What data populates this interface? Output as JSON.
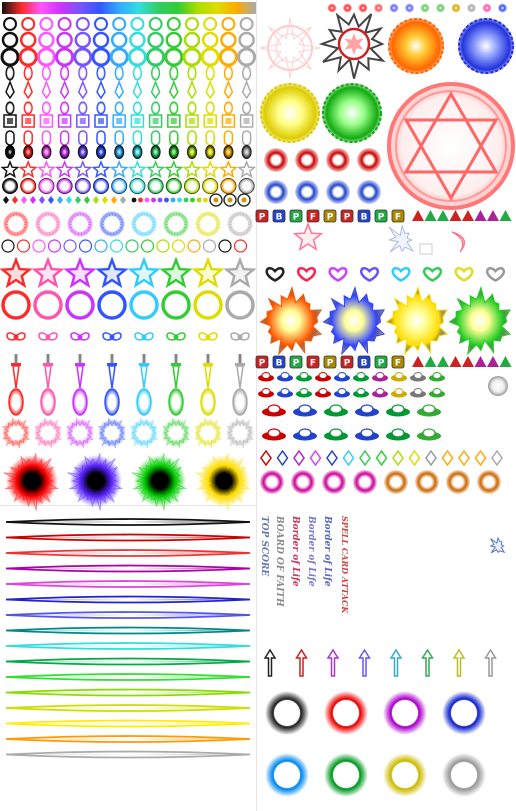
{
  "spritesheet": {
    "palette": [
      "#ff2a2a",
      "#ff55aa",
      "#cc33ff",
      "#3355ff",
      "#33ccff",
      "#33cc33",
      "#dddd00",
      "#aaaaaa"
    ],
    "palette_ext": [
      "#111111",
      "#ff2a2a",
      "#ff55ff",
      "#cc33ff",
      "#7755ff",
      "#3355ff",
      "#33aaff",
      "#33dddd",
      "#33cc66",
      "#33cc33",
      "#aadd00",
      "#dddd00",
      "#ffaa00",
      "#aaaaaa"
    ],
    "orb_colors": [
      "#ff5500",
      "#3344ff",
      "#ffdd00",
      "#22cc22"
    ],
    "burst_colors": [
      "#ff0000",
      "#5522ff",
      "#00cc00",
      "#ffdd00"
    ],
    "blob_colors": [
      "#cc0000",
      "#2244cc"
    ],
    "beam_colors": [
      "#111111",
      "#cc0000",
      "#ee3333",
      "#aa00aa",
      "#dd44dd",
      "#2222cc",
      "#5555ee",
      "#008888",
      "#33dddd",
      "#00aa44",
      "#33dd33",
      "#88dd00",
      "#ccdd00",
      "#ffee00",
      "#ff9900",
      "#aaaaaa"
    ],
    "rune_labels": [
      "P",
      "B",
      "P",
      "F",
      "P",
      "P",
      "B",
      "P",
      "F"
    ],
    "banner_texts": [
      "TOP SCORE",
      "BOARD OF FAITH",
      "Border of Life",
      "Border of Life",
      "SPELL CARD ATTACK"
    ],
    "aura_colors": [
      "#222222",
      "#ee0000",
      "#aa00cc",
      "#1122cc",
      "#0088ee",
      "#009922",
      "#ccbb00",
      "#999999"
    ]
  }
}
